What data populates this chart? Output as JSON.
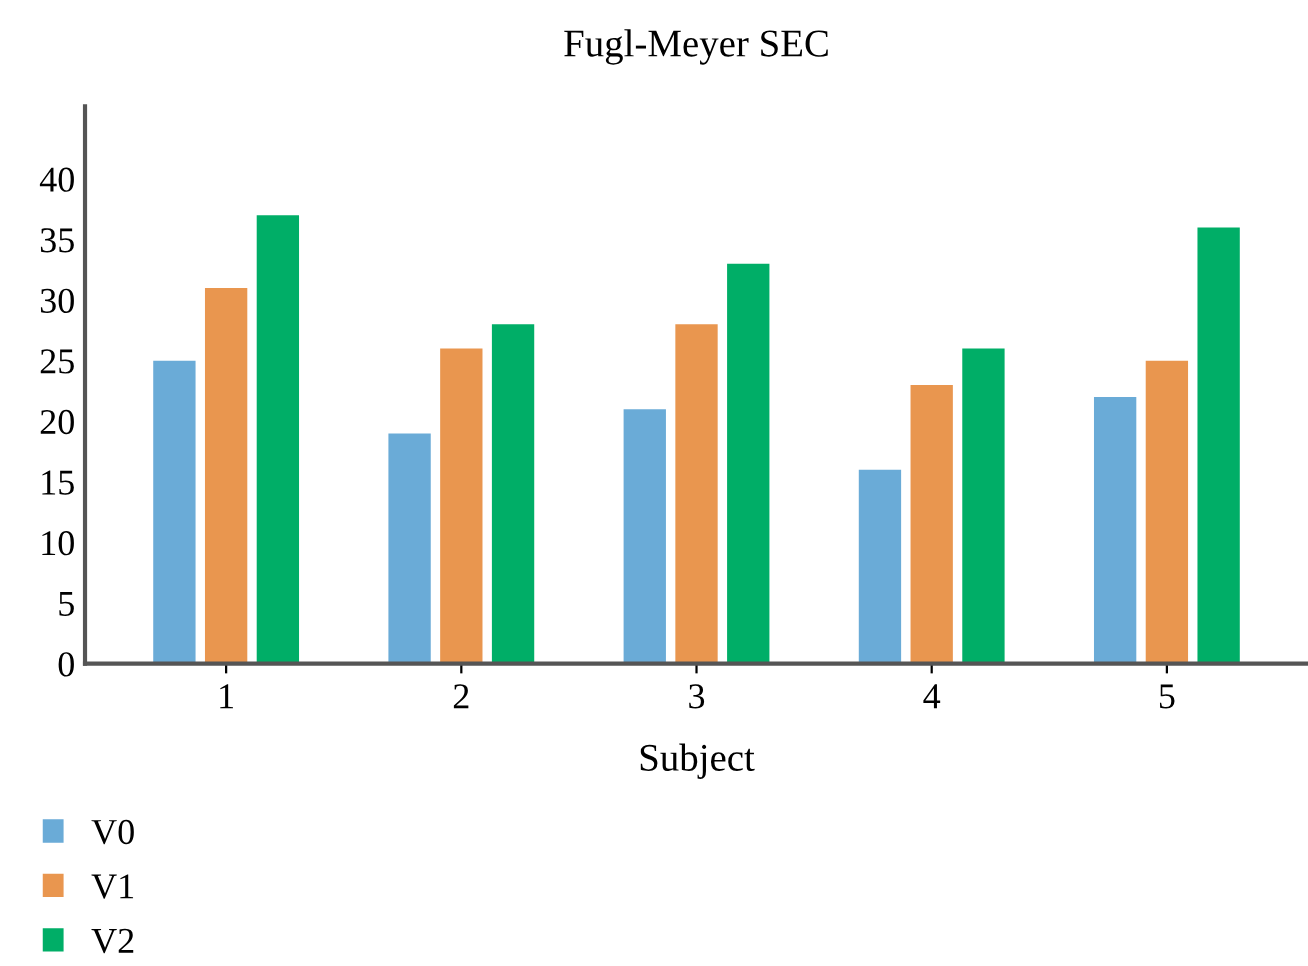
{
  "chart_data": {
    "type": "bar",
    "title": "Fugl-Meyer SEC",
    "xlabel": "Subject",
    "categories": [
      "1",
      "2",
      "3",
      "4",
      "5"
    ],
    "series": [
      {
        "name": "V0",
        "color": "#6aabd7",
        "values": [
          25,
          19,
          21,
          16,
          22
        ]
      },
      {
        "name": "V1",
        "color": "#e9964f",
        "values": [
          31,
          26,
          28,
          23,
          25
        ]
      },
      {
        "name": "V2",
        "color": "#00ae67",
        "values": [
          37,
          28,
          33,
          26,
          36
        ]
      }
    ],
    "ylim": [
      0,
      46
    ],
    "yticks": [
      0,
      5,
      10,
      15,
      20,
      25,
      30,
      35,
      40
    ],
    "grid": false,
    "legend": "bottom left"
  }
}
